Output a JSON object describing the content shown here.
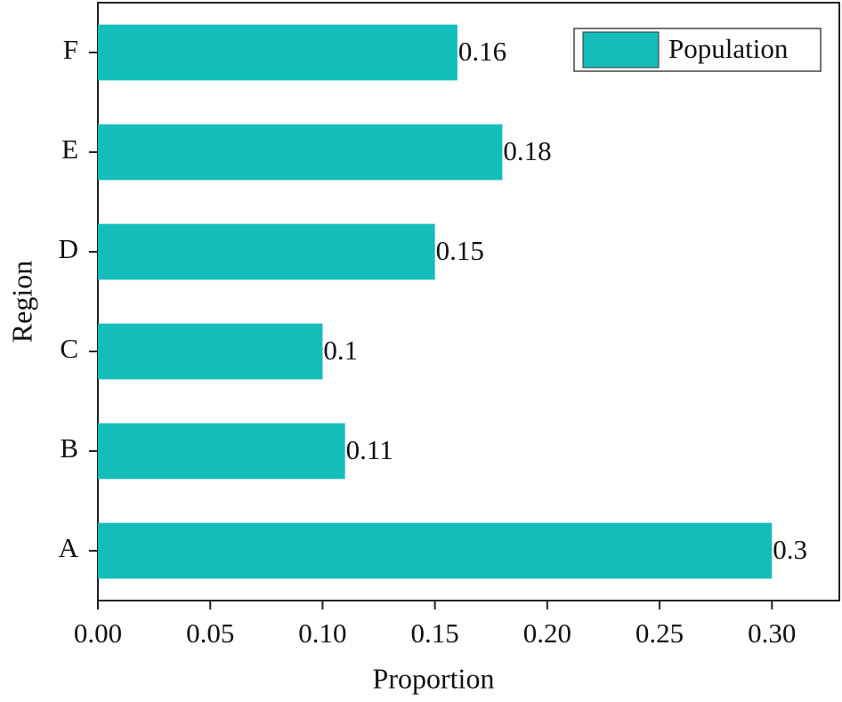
{
  "chart_data": {
    "type": "barh",
    "x_label": "Proportion",
    "y_label": "Region",
    "categories": [
      "A",
      "B",
      "C",
      "D",
      "E",
      "F"
    ],
    "series": [
      {
        "name": "Population",
        "color": "#13bdba",
        "values": [
          0.3,
          0.11,
          0.1,
          0.15,
          0.18,
          0.16
        ]
      }
    ],
    "xlim": [
      0,
      0.33
    ],
    "xticks": [
      {
        "value": 0,
        "label": "0.00"
      },
      0.05,
      {
        "value": 0.1,
        "label": "0.10"
      },
      0.15,
      {
        "value": 0.2,
        "label": "0.20"
      },
      0.25,
      {
        "value": 0.3,
        "label": "0.30"
      }
    ],
    "legend": "upper right",
    "grid": false
  }
}
